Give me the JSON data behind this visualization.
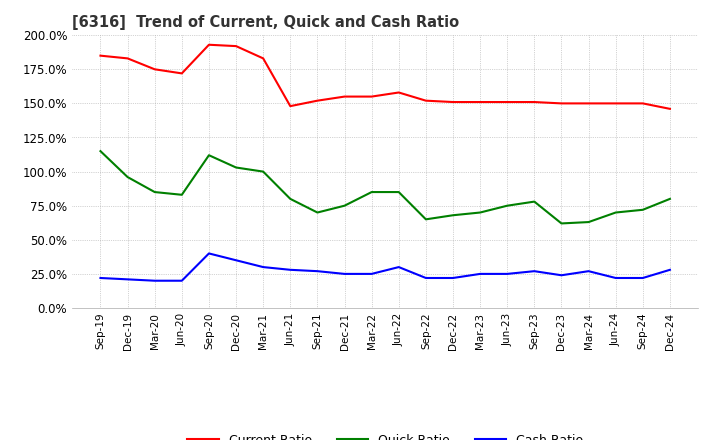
{
  "title": "[6316]  Trend of Current, Quick and Cash Ratio",
  "labels": [
    "Sep-19",
    "Dec-19",
    "Mar-20",
    "Jun-20",
    "Sep-20",
    "Dec-20",
    "Mar-21",
    "Jun-21",
    "Sep-21",
    "Dec-21",
    "Mar-22",
    "Jun-22",
    "Sep-22",
    "Dec-22",
    "Mar-23",
    "Jun-23",
    "Sep-23",
    "Dec-23",
    "Mar-24",
    "Jun-24",
    "Sep-24",
    "Dec-24"
  ],
  "current_ratio": [
    185.0,
    183.0,
    175.0,
    172.0,
    193.0,
    192.0,
    183.0,
    148.0,
    152.0,
    155.0,
    155.0,
    158.0,
    152.0,
    151.0,
    151.0,
    151.0,
    151.0,
    150.0,
    150.0,
    150.0,
    150.0,
    146.0
  ],
  "quick_ratio": [
    115.0,
    96.0,
    85.0,
    83.0,
    112.0,
    103.0,
    100.0,
    80.0,
    70.0,
    75.0,
    85.0,
    85.0,
    65.0,
    68.0,
    70.0,
    75.0,
    78.0,
    62.0,
    63.0,
    70.0,
    72.0,
    80.0
  ],
  "cash_ratio": [
    22.0,
    21.0,
    20.0,
    20.0,
    40.0,
    35.0,
    30.0,
    28.0,
    27.0,
    25.0,
    25.0,
    30.0,
    22.0,
    22.0,
    25.0,
    25.0,
    27.0,
    24.0,
    27.0,
    22.0,
    22.0,
    28.0
  ],
  "current_color": "#ff0000",
  "quick_color": "#008000",
  "cash_color": "#0000ff",
  "ylim": [
    0.0,
    200.0
  ],
  "yticks": [
    0.0,
    25.0,
    50.0,
    75.0,
    100.0,
    125.0,
    150.0,
    175.0,
    200.0
  ],
  "background_color": "#ffffff",
  "grid_color": "#aaaaaa"
}
